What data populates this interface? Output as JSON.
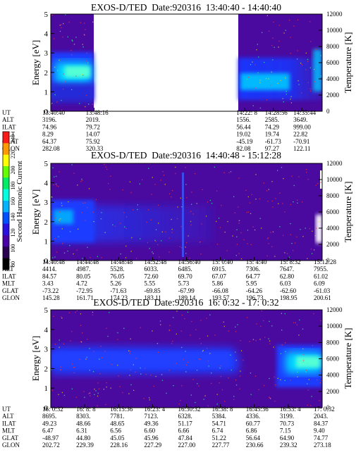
{
  "colorbar": {
    "title": "Second Harmonic Current",
    "ticks": [
      "240",
      "220",
      "200",
      "180",
      "160",
      "140",
      "120",
      "100",
      "80"
    ],
    "colors": [
      "#ff1a1a",
      "#ff9900",
      "#ffff00",
      "#66ff00",
      "#00ee66",
      "#00ffe0",
      "#00b4ff",
      "#0050ff",
      "#2a10e0",
      "#4a00a8",
      "#2a0050",
      "#000000"
    ]
  },
  "chart_data": [
    {
      "type": "heatmap",
      "title": "EXOS-D/TED  Date:920316  13:40:40 - 14:40:40",
      "ylabel": "Energy [eV]",
      "ylabel_right": "Temperature [K]",
      "ylim": [
        0,
        5
      ],
      "yticks": [
        "0",
        "1",
        "2",
        "3",
        "4",
        "5"
      ],
      "ylim_right": [
        0,
        12000
      ],
      "yticks_right": [
        "0",
        "2000",
        "4000",
        "6000",
        "8000",
        "10000",
        "12000"
      ],
      "data_gaps": [
        [
          0.159,
          0.715
        ]
      ],
      "orbit_rows": [
        "UT",
        "ALT",
        "ILAT",
        "MLT",
        "GLAT",
        "GLON"
      ],
      "orbit_columns": [
        {
          "pos": 0.0,
          "values": [
            "13:40:40",
            "3196.",
            "74.96",
            "8.29",
            "64.37",
            "282.08"
          ]
        },
        {
          "pos": 0.16,
          "values": [
            "13:48:16",
            "2019.",
            "79.72",
            "14.07",
            "75.92",
            "320.33"
          ]
        },
        {
          "pos": 0.715,
          "values": [
            "14:22: 8",
            "1556.",
            "56.44",
            "19.02",
            "-45.19",
            "82.08"
          ]
        },
        {
          "pos": 0.82,
          "values": [
            "14:28:56",
            "2585.",
            "74.29",
            "19.74",
            "-61.73",
            "97.27"
          ]
        },
        {
          "pos": 0.925,
          "values": [
            "14:35:44",
            "3649.",
            "999.00",
            "22.82",
            "-70.91",
            "122.11"
          ]
        }
      ]
    },
    {
      "type": "heatmap",
      "title": "EXOS-D/TED  Date:920316  14:40:48 - 15:12:28",
      "ylabel": "Energy [eV]",
      "ylabel_right": "Temperature [K]",
      "ylim": [
        0,
        5
      ],
      "yticks": [
        "0",
        "1",
        "2",
        "3",
        "4",
        "5"
      ],
      "ylim_right": [
        0,
        12000
      ],
      "yticks_right": [
        "0",
        "2000",
        "4000",
        "6000",
        "8000",
        "10000",
        "12000"
      ],
      "orbit_rows": [
        "UT",
        "ALT",
        "ILAT",
        "MLT",
        "GLAT",
        "GLON"
      ],
      "orbit_columns": [
        {
          "pos": 0.0,
          "values": [
            "14:40:48",
            "4414.",
            "84.57",
            "3.43",
            "-73.22",
            "145.28"
          ]
        },
        {
          "pos": 0.125,
          "values": [
            "14:44:48",
            "4987.",
            "80.05",
            "4.72",
            "-72.95",
            "161.71"
          ]
        },
        {
          "pos": 0.25,
          "values": [
            "14:48:48",
            "5528.",
            "76.05",
            "5.26",
            "-71.63",
            "174.23"
          ]
        },
        {
          "pos": 0.375,
          "values": [
            "14:52:48",
            "6033.",
            "72.60",
            "5.55",
            "-69.85",
            "183.11"
          ]
        },
        {
          "pos": 0.5,
          "values": [
            "14:56:40",
            "6485.",
            "69.70",
            "5.73",
            "-67.99",
            "189.14"
          ]
        },
        {
          "pos": 0.625,
          "values": [
            "15: 0:40",
            "6915.",
            "67.07",
            "5.86",
            "-66.08",
            "193.57"
          ]
        },
        {
          "pos": 0.75,
          "values": [
            "15: 4:40",
            "7306.",
            "64.77",
            "5.95",
            "-64.26",
            "196.73"
          ]
        },
        {
          "pos": 0.875,
          "values": [
            "15: 8:32",
            "7647.",
            "62.80",
            "6.03",
            "-62.60",
            "198.95"
          ]
        },
        {
          "pos": 1.0,
          "values": [
            "15:12:28",
            "7955.",
            "61.02",
            "6.09",
            "-61.03",
            "200.61"
          ]
        }
      ]
    },
    {
      "type": "heatmap",
      "title": "EXOS-D/TED  Date:920316  16: 0:32 - 17: 0:32",
      "ylabel": "Energy [eV]",
      "ylabel_right": "Temperature [K]",
      "ylim": [
        0,
        5
      ],
      "yticks": [
        "0",
        "1",
        "2",
        "3",
        "4",
        "5"
      ],
      "ylim_right": [
        0,
        12000
      ],
      "yticks_right": [
        "0",
        "2000",
        "4000",
        "6000",
        "8000",
        "10000",
        "12000"
      ],
      "orbit_rows": [
        "UT",
        "ALT",
        "ILAT",
        "MLT",
        "GLAT",
        "GLON"
      ],
      "orbit_columns": [
        {
          "pos": 0.0,
          "values": [
            "16: 0:32",
            "8695.",
            "49.23",
            "6.47",
            "-48.97",
            "202.72"
          ]
        },
        {
          "pos": 0.125,
          "values": [
            "16: 8: 8",
            "8303.",
            "48.66",
            "6.31",
            "44.80",
            "229.39"
          ]
        },
        {
          "pos": 0.25,
          "values": [
            "16:15:36",
            "7781.",
            "48.65",
            "6.56",
            "45.05",
            "228.16"
          ]
        },
        {
          "pos": 0.375,
          "values": [
            "16:23: 4",
            "7123.",
            "49.36",
            "6.60",
            "45.96",
            "227.29"
          ]
        },
        {
          "pos": 0.5,
          "values": [
            "16:30:32",
            "6328.",
            "51.17",
            "6.66",
            "47.84",
            "227.00"
          ]
        },
        {
          "pos": 0.625,
          "values": [
            "16:38: 8",
            "5384.",
            "54.71",
            "6.74",
            "51.22",
            "227.77"
          ]
        },
        {
          "pos": 0.75,
          "values": [
            "16:45:36",
            "4336.",
            "60.77",
            "6.86",
            "56.64",
            "230.66"
          ]
        },
        {
          "pos": 0.875,
          "values": [
            "16:53: 4",
            "3199.",
            "70.73",
            "7.15",
            "64.90",
            "239.32"
          ]
        },
        {
          "pos": 1.0,
          "values": [
            "17: 0:32",
            "2043.",
            "84.37",
            "9.40",
            "74.77",
            "273.18"
          ]
        }
      ]
    }
  ]
}
